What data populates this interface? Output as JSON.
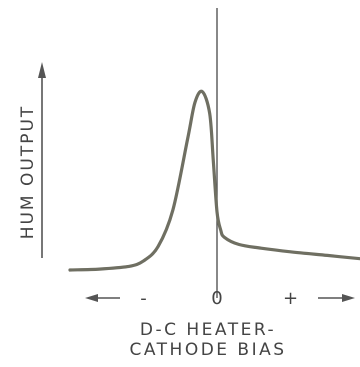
{
  "chart_data": {
    "type": "line",
    "title": "",
    "xlabel_lines": [
      "D-C HEATER-",
      "CATHODE BIAS"
    ],
    "ylabel": "HUM OUTPUT",
    "x_ticks": [
      {
        "label": "-",
        "x": -1
      },
      {
        "label": "0",
        "x": 0
      },
      {
        "label": "+",
        "x": 1
      }
    ],
    "xlim": [
      -2,
      2
    ],
    "ylim": [
      0,
      1
    ],
    "axis_arrows": {
      "x": "both",
      "y": "up"
    },
    "grid": false,
    "series": [
      {
        "color": "#6f6f62",
        "x": [
          -2.0,
          -1.6,
          -1.2,
          -1.0,
          -0.8,
          -0.6,
          -0.4,
          -0.3,
          -0.2,
          -0.1,
          -0.05,
          0.0,
          0.05,
          0.1,
          0.3,
          0.6,
          1.0,
          1.5,
          2.0
        ],
        "y": [
          0.0,
          0.005,
          0.02,
          0.05,
          0.13,
          0.33,
          0.72,
          0.92,
          0.98,
          0.86,
          0.6,
          0.32,
          0.22,
          0.18,
          0.14,
          0.12,
          0.1,
          0.08,
          0.06
        ]
      }
    ]
  }
}
